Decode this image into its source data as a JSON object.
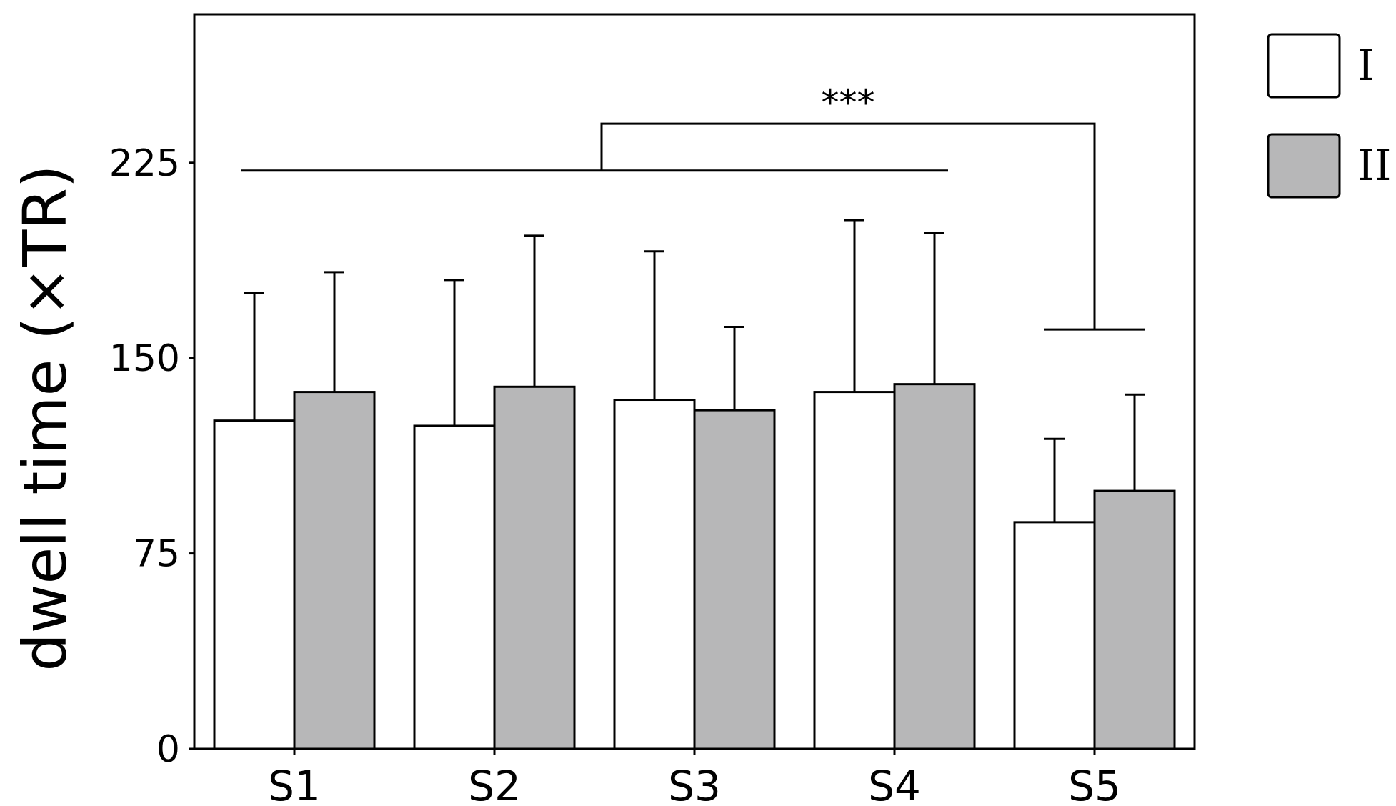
{
  "chart_data": {
    "type": "bar",
    "title": "",
    "xlabel": "",
    "ylabel": "dwell time (×TR)",
    "ylim": [
      0,
      282
    ],
    "yticks": [
      0,
      75,
      150,
      225
    ],
    "categories": [
      "S1",
      "S2",
      "S3",
      "S4",
      "S5"
    ],
    "series": [
      {
        "name": "I",
        "color": "#ffffff",
        "values": [
          126,
          124,
          134,
          137,
          87
        ],
        "errors": [
          49,
          56,
          57,
          66,
          32
        ]
      },
      {
        "name": "II",
        "color": "#b7b7b8",
        "values": [
          137,
          139,
          130,
          140,
          99
        ],
        "errors": [
          46,
          58,
          32,
          58,
          37
        ]
      }
    ],
    "legend_position": "top-right, outside plot",
    "grid": false,
    "significance": {
      "label": "***",
      "group_from": "S1",
      "group_to": "S4",
      "group_line_value": 222,
      "target": "S5",
      "target_line_value": 161,
      "bracket_top_value": 240
    }
  }
}
